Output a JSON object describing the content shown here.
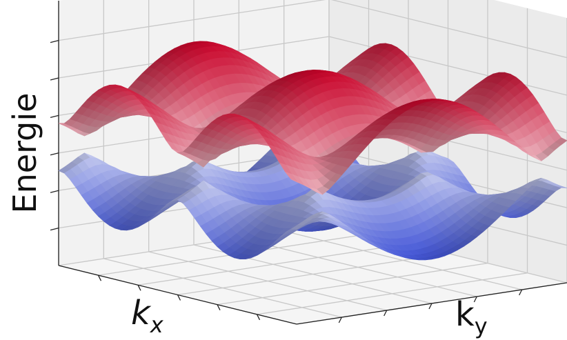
{
  "axes": {
    "z_label": "Energie",
    "x_label": {
      "base": "k",
      "sub": "x"
    },
    "y_label": {
      "base": "k",
      "sub": "y"
    }
  }
}
